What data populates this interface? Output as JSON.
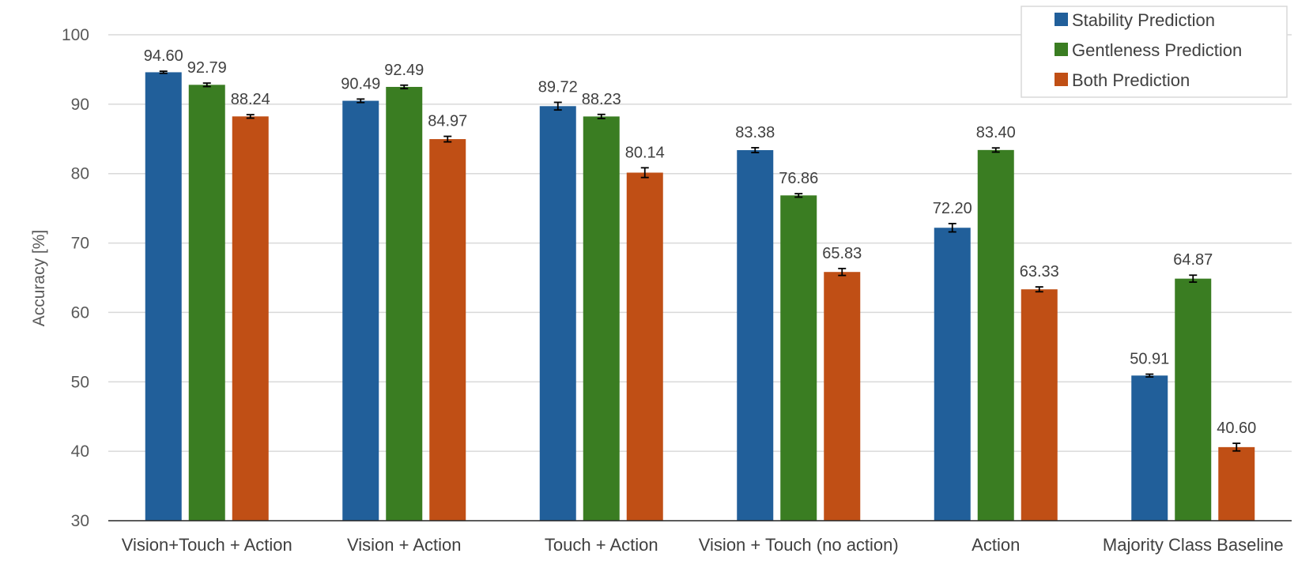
{
  "chart_data": {
    "type": "bar",
    "title": "",
    "xlabel": "",
    "ylabel": "Accuracy [%]",
    "ylim": [
      30,
      100
    ],
    "yticks": [
      30,
      40,
      50,
      60,
      70,
      80,
      90,
      100
    ],
    "grid": true,
    "legend_position": "top-right",
    "categories": [
      "Vision+Touch + Action",
      "Vision + Action",
      "Touch + Action",
      "Vision + Touch (no action)",
      "Action",
      "Majority Class Baseline"
    ],
    "series": [
      {
        "name": "Stability Prediction",
        "color": "#215F9A",
        "values": [
          94.6,
          90.49,
          89.72,
          83.38,
          72.2,
          50.91
        ],
        "labels": [
          "94.60",
          "90.49",
          "89.72",
          "83.38",
          "72.20",
          "50.91"
        ],
        "errors": [
          0.15,
          0.25,
          0.55,
          0.35,
          0.6,
          0.2
        ]
      },
      {
        "name": "Gentleness Prediction",
        "color": "#3A7D22",
        "values": [
          92.79,
          92.49,
          88.23,
          76.86,
          83.4,
          64.87
        ],
        "labels": [
          "92.79",
          "92.49",
          "88.23",
          "76.86",
          "83.40",
          "64.87"
        ],
        "errors": [
          0.25,
          0.25,
          0.3,
          0.25,
          0.3,
          0.5
        ]
      },
      {
        "name": "Both Prediction",
        "color": "#C04F15",
        "values": [
          88.24,
          84.97,
          80.14,
          65.83,
          63.33,
          40.6
        ],
        "labels": [
          "88.24",
          "84.97",
          "80.14",
          "65.83",
          "63.33",
          "40.60"
        ],
        "errors": [
          0.25,
          0.4,
          0.7,
          0.5,
          0.35,
          0.55
        ]
      }
    ]
  }
}
